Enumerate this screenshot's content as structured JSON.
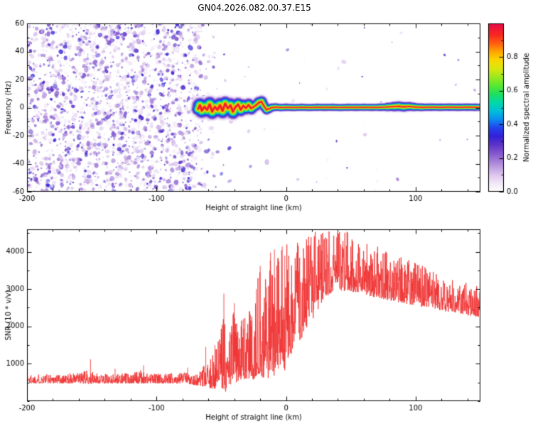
{
  "title": "GN04.2026.082.00.37.E15",
  "colors": {
    "background": "#ffffff",
    "axis": "#000000",
    "snr_line": "#f03333"
  },
  "colormap": {
    "stops": [
      [
        0.0,
        "#ffffff"
      ],
      [
        0.05,
        "#f2e8f7"
      ],
      [
        0.1,
        "#dcc6ee"
      ],
      [
        0.16,
        "#b491dd"
      ],
      [
        0.22,
        "#8a5ecf"
      ],
      [
        0.28,
        "#5c33c8"
      ],
      [
        0.33,
        "#3320d8"
      ],
      [
        0.38,
        "#2244ee"
      ],
      [
        0.43,
        "#0b8ef0"
      ],
      [
        0.48,
        "#00c0d8"
      ],
      [
        0.53,
        "#00d8a8"
      ],
      [
        0.58,
        "#20e060"
      ],
      [
        0.63,
        "#58e830"
      ],
      [
        0.68,
        "#9ae820"
      ],
      [
        0.73,
        "#d8e810"
      ],
      [
        0.78,
        "#f8d800"
      ],
      [
        0.83,
        "#ffa800"
      ],
      [
        0.88,
        "#ff6010"
      ],
      [
        0.93,
        "#f82820"
      ],
      [
        1.0,
        "#e80848"
      ]
    ]
  },
  "chart_data": [
    {
      "type": "heatmap",
      "title": "GN04.2026.082.00.37.E15",
      "xlabel": "Height of straight line (km)",
      "ylabel": "Frequency (Hz)",
      "xlim": [
        -200,
        150
      ],
      "ylim": [
        -60,
        60
      ],
      "xticks": [
        -200,
        -100,
        0,
        100
      ],
      "yticks": [
        -60,
        -40,
        -20,
        0,
        20,
        40,
        60
      ],
      "colorbar": {
        "label": "Normalized spectral amplitude",
        "ticks": [
          0.0,
          0.2,
          0.4,
          0.6,
          0.8
        ],
        "range": [
          0,
          1
        ]
      },
      "noise_region": {
        "description": "random low-amplitude speckle noise filling all frequencies left of signal acquisition",
        "x_range": [
          -200,
          -55
        ],
        "freq_range": [
          -60,
          60
        ],
        "amplitude_range": [
          0.04,
          0.34
        ]
      },
      "noise_density_profile": [
        [
          -200,
          1.0
        ],
        [
          -68,
          1.0
        ],
        [
          -66,
          0.55
        ],
        [
          -63,
          0.2
        ],
        [
          -60,
          0.32
        ],
        [
          -55,
          0.3
        ],
        [
          -52,
          0.08
        ],
        [
          -45,
          0.05
        ],
        [
          -40,
          0.02
        ],
        [
          150,
          0.015
        ]
      ],
      "signal_trace": {
        "description": "narrowband signal near 0 Hz appearing at about -68 km; wiggly/blobby until about -15 km then flat at ~0 Hz to 150 km; points are [height_km, frequency_hz, halfwidth_hz], core amplitude ~1.0",
        "points": [
          [
            -68,
            -1.0,
            2.2
          ],
          [
            -66.5,
            1.5,
            2.8
          ],
          [
            -65,
            -2.0,
            3.2
          ],
          [
            -63,
            0.5,
            2.6
          ],
          [
            -61,
            -1.5,
            2.9
          ],
          [
            -59,
            2.2,
            3.1
          ],
          [
            -57,
            -2.8,
            2.9
          ],
          [
            -55,
            0.5,
            2.4
          ],
          [
            -53,
            -1.5,
            2.8
          ],
          [
            -51,
            1.5,
            3.2
          ],
          [
            -49,
            -2.2,
            2.9
          ],
          [
            -47,
            2.8,
            2.8
          ],
          [
            -45,
            -0.5,
            2.4
          ],
          [
            -43,
            1.5,
            2.8
          ],
          [
            -41,
            -2.8,
            3.1
          ],
          [
            -39,
            0.5,
            2.4
          ],
          [
            -37,
            2.2,
            2.8
          ],
          [
            -35,
            -1.5,
            2.4
          ],
          [
            -33,
            1.2,
            2.7
          ],
          [
            -31,
            -0.3,
            2.4
          ],
          [
            -29,
            1.8,
            2.7
          ],
          [
            -27,
            -0.5,
            2.3
          ],
          [
            -25,
            0.5,
            2.0
          ],
          [
            -23,
            1.8,
            2.2
          ],
          [
            -21,
            3.5,
            2.3
          ],
          [
            -19,
            4.2,
            2.2
          ],
          [
            -17,
            1.0,
            1.9
          ],
          [
            -15,
            -1.5,
            1.9
          ],
          [
            -13,
            -0.8,
            1.7
          ],
          [
            -11,
            0.0,
            1.6
          ],
          [
            -8,
            0.3,
            1.5
          ],
          [
            -4,
            0.0,
            1.4
          ],
          [
            0,
            0.2,
            1.45
          ],
          [
            6,
            0.0,
            1.35
          ],
          [
            12,
            0.2,
            1.4
          ],
          [
            18,
            0.0,
            1.35
          ],
          [
            24,
            0.2,
            1.4
          ],
          [
            30,
            0.1,
            1.35
          ],
          [
            36,
            0.2,
            1.4
          ],
          [
            42,
            0.0,
            1.35
          ],
          [
            48,
            0.2,
            1.4
          ],
          [
            54,
            0.1,
            1.35
          ],
          [
            60,
            0.2,
            1.4
          ],
          [
            66,
            0.1,
            1.35
          ],
          [
            72,
            0.2,
            1.4
          ],
          [
            78,
            0.4,
            1.55
          ],
          [
            83,
            0.7,
            1.8
          ],
          [
            87,
            0.9,
            1.95
          ],
          [
            91,
            0.5,
            1.8
          ],
          [
            95,
            0.8,
            1.75
          ],
          [
            99,
            0.4,
            1.6
          ],
          [
            105,
            0.2,
            1.45
          ],
          [
            112,
            0.3,
            1.45
          ],
          [
            119,
            0.2,
            1.4
          ],
          [
            126,
            0.3,
            1.45
          ],
          [
            133,
            0.2,
            1.4
          ],
          [
            140,
            0.3,
            1.45
          ],
          [
            146,
            0.2,
            1.4
          ],
          [
            150,
            0.25,
            1.4
          ]
        ],
        "layers": [
          [
            0.05,
            2.4
          ],
          [
            0.14,
            2.0
          ],
          [
            0.26,
            1.7
          ],
          [
            0.38,
            1.4
          ],
          [
            0.5,
            1.12
          ],
          [
            0.62,
            0.86
          ],
          [
            0.74,
            0.62
          ],
          [
            0.86,
            0.4
          ],
          [
            0.97,
            0.2
          ]
        ]
      }
    },
    {
      "type": "line",
      "xlabel": "Height of straight line (km)",
      "ylabel": "SNR (10 * v/v)",
      "xlim": [
        -200,
        150
      ],
      "ylim": [
        0,
        4600
      ],
      "xticks": [
        -200,
        -100,
        0,
        100
      ],
      "yticks": [
        1000,
        2000,
        3000,
        4000
      ],
      "series": [
        {
          "name": "SNR",
          "color": "#f03333",
          "description": "noisy SNR trace: baseline ~550 from -200 to -65 km, intermittent strong spikes -55 to 0 km, broad maximum ~3400-4400 around +30 to +50 km, slow decline to ~2500 at 150 km; envelope points are [height_km, base, noise_amplitude]",
          "envelope": [
            [
              -200,
              540,
              160
            ],
            [
              -190,
              540,
              170
            ],
            [
              -180,
              545,
              170
            ],
            [
              -170,
              545,
              180
            ],
            [
              -160,
              550,
              190
            ],
            [
              -152,
              560,
              260
            ],
            [
              -148,
              545,
              180
            ],
            [
              -140,
              540,
              170
            ],
            [
              -130,
              545,
              180
            ],
            [
              -120,
              550,
              190
            ],
            [
              -112,
              560,
              240
            ],
            [
              -105,
              545,
              180
            ],
            [
              -95,
              545,
              180
            ],
            [
              -85,
              550,
              190
            ],
            [
              -78,
              560,
              220
            ],
            [
              -72,
              520,
              200
            ],
            [
              -68,
              480,
              220
            ],
            [
              -64,
              520,
              380
            ],
            [
              -60,
              520,
              420
            ],
            [
              -56,
              600,
              700
            ],
            [
              -52,
              700,
              900
            ],
            [
              -48,
              800,
              1600
            ],
            [
              -45,
              700,
              900
            ],
            [
              -42,
              900,
              1300
            ],
            [
              -40,
              1100,
              1300
            ],
            [
              -38,
              900,
              1100
            ],
            [
              -36,
              1100,
              1200
            ],
            [
              -34,
              950,
              1100
            ],
            [
              -32,
              1100,
              1200
            ],
            [
              -30,
              1000,
              1200
            ],
            [
              -28,
              1150,
              1300
            ],
            [
              -26,
              1000,
              1200
            ],
            [
              -24,
              1200,
              1400
            ],
            [
              -22,
              1400,
              1700
            ],
            [
              -20,
              1500,
              1900
            ],
            [
              -18,
              1100,
              1500
            ],
            [
              -16,
              1500,
              1700
            ],
            [
              -14,
              1300,
              1800
            ],
            [
              -12,
              1700,
              2100
            ],
            [
              -10,
              1400,
              2000
            ],
            [
              -8,
              1800,
              2000
            ],
            [
              -6,
              1500,
              2100
            ],
            [
              -4,
              1900,
              2000
            ],
            [
              -2,
              1600,
              2200
            ],
            [
              0,
              1900,
              2100
            ],
            [
              3,
              2000,
              2000
            ],
            [
              6,
              2100,
              1900
            ],
            [
              10,
              2300,
              1800
            ],
            [
              14,
              2500,
              1700
            ],
            [
              18,
              2700,
              1600
            ],
            [
              22,
              2900,
              1500
            ],
            [
              26,
              3100,
              1300
            ],
            [
              30,
              3250,
              1200
            ],
            [
              34,
              3350,
              1150
            ],
            [
              38,
              3400,
              1100
            ],
            [
              42,
              3400,
              1100
            ],
            [
              46,
              3380,
              1100
            ],
            [
              50,
              3350,
              1050
            ],
            [
              55,
              3300,
              1000
            ],
            [
              60,
              3250,
              950
            ],
            [
              66,
              3180,
              950
            ],
            [
              72,
              3120,
              900
            ],
            [
              80,
              3050,
              900
            ],
            [
              88,
              2980,
              850
            ],
            [
              96,
              2900,
              800
            ],
            [
              104,
              2820,
              750
            ],
            [
              112,
              2750,
              700
            ],
            [
              120,
              2680,
              650
            ],
            [
              128,
              2620,
              600
            ],
            [
              136,
              2560,
              580
            ],
            [
              144,
              2500,
              560
            ],
            [
              150,
              2470,
              550
            ]
          ],
          "spikes": [
            [
              -151,
              1120
            ],
            [
              -132,
              870
            ],
            [
              -110,
              960
            ],
            [
              -76,
              900
            ],
            [
              -62,
              1450
            ],
            [
              -55,
              1500
            ],
            [
              -48,
              2880
            ],
            [
              -44,
              1600
            ],
            [
              -40,
              2620
            ],
            [
              -33,
              2200
            ],
            [
              -28,
              2400
            ],
            [
              -23,
              3000
            ],
            [
              -20,
              3620
            ],
            [
              -15,
              3050
            ],
            [
              -12,
              3980
            ],
            [
              -9,
              4060
            ],
            [
              -6,
              3840
            ],
            [
              -3,
              4140
            ],
            [
              -1,
              3900
            ]
          ]
        }
      ]
    }
  ]
}
